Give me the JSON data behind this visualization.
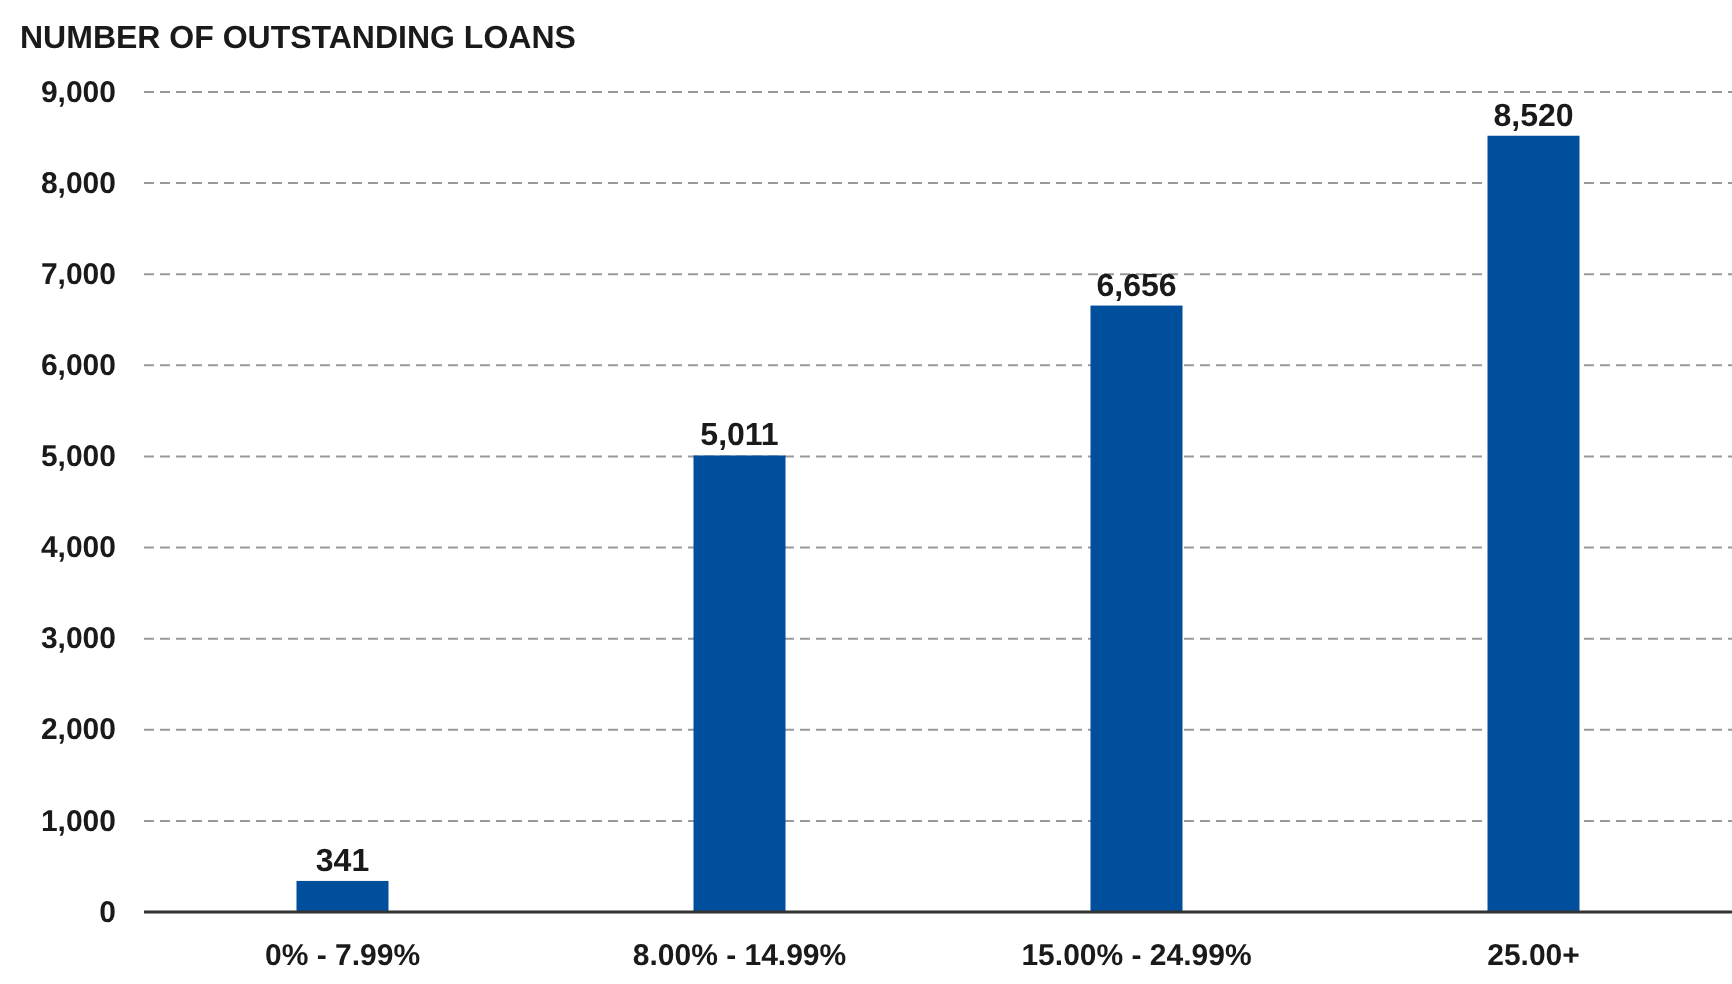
{
  "chart_data": {
    "type": "bar",
    "title": "NUMBER OF OUTSTANDING LOANS",
    "categories": [
      "0% - 7.99%",
      "8.00% - 14.99%",
      "15.00% - 24.99%",
      "25.00+"
    ],
    "values": [
      341,
      5011,
      6656,
      8520
    ],
    "color": "#004f9c",
    "ylim": [
      0,
      9000
    ],
    "yticks": [
      {
        "value": 0,
        "label": "0"
      },
      {
        "value": 1000,
        "label": "1,000"
      },
      {
        "value": 2000,
        "label": "2,000"
      },
      {
        "value": 3000,
        "label": "3,000"
      },
      {
        "value": 4000,
        "label": "4,000"
      },
      {
        "value": 5000,
        "label": "5,000"
      },
      {
        "value": 6000,
        "label": "6,000"
      },
      {
        "value": 7000,
        "label": "7,000"
      },
      {
        "value": 8000,
        "label": "8,000"
      },
      {
        "value": 9000,
        "label": "9,000"
      }
    ],
    "grid": "y",
    "value_labels": [
      "341",
      "5,011",
      "6,656",
      "8,520"
    ]
  }
}
